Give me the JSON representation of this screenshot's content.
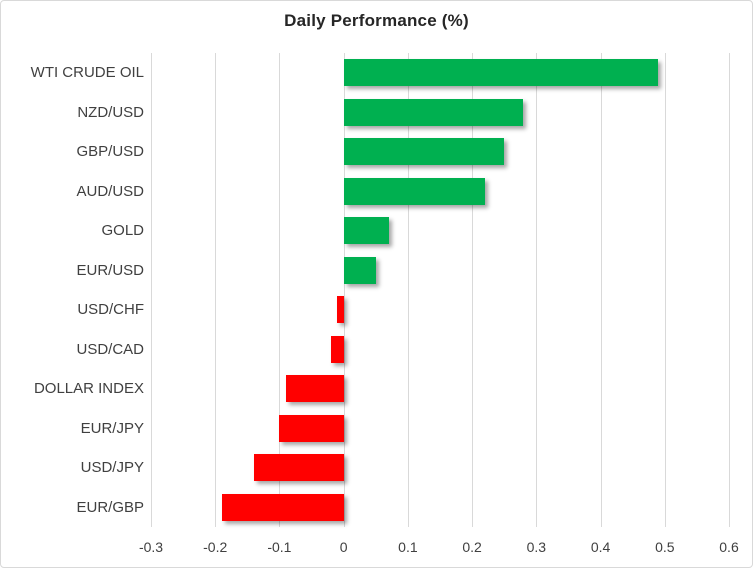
{
  "chart_data": {
    "type": "bar",
    "orientation": "horizontal",
    "title": "Daily Performance (%)",
    "categories": [
      "WTI CRUDE OIL",
      "NZD/USD",
      "GBP/USD",
      "AUD/USD",
      "GOLD",
      "EUR/USD",
      "USD/CHF",
      "USD/CAD",
      "DOLLAR INDEX",
      "EUR/JPY",
      "USD/JPY",
      "EUR/GBP"
    ],
    "values": [
      0.49,
      0.28,
      0.25,
      0.22,
      0.07,
      0.05,
      -0.01,
      -0.02,
      -0.09,
      -0.1,
      -0.14,
      -0.19
    ],
    "xlabel": "",
    "ylabel": "",
    "xlim": [
      -0.3,
      0.6
    ],
    "x_ticks": [
      -0.3,
      -0.2,
      -0.1,
      0,
      0.1,
      0.2,
      0.3,
      0.4,
      0.5,
      0.6
    ],
    "x_tick_labels": [
      "-0.3",
      "-0.2",
      "-0.1",
      "0",
      "0.1",
      "0.2",
      "0.3",
      "0.4",
      "0.5",
      "0.6"
    ],
    "grid": "vertical",
    "legend": "none",
    "colors": {
      "positive": "#00B050",
      "negative": "#FF0000",
      "gridline": "#D9D9D9",
      "border": "#D9D9D9",
      "background": "#FFFFFF",
      "title_text": "#262626",
      "label_text": "#404040",
      "tick_text": "#404040"
    }
  }
}
